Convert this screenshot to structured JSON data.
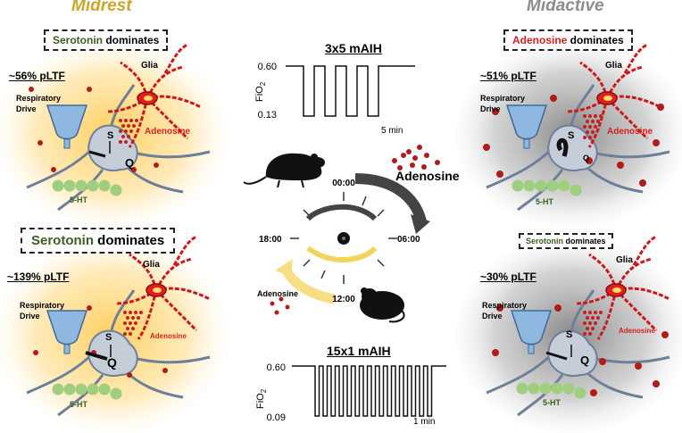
{
  "titles": {
    "left": "Midrest",
    "right": "Midactive"
  },
  "colors": {
    "midrest": "#c9a52a",
    "midactive": "#8c8c8c",
    "serotonin": "#3a5f1e",
    "adenosine": "#d42020",
    "glia": "#cc1a1a",
    "drive": "#8fb8e0",
    "ht": "#9fce7f"
  },
  "panels": [
    {
      "dominates_word": "Serotonin",
      "dominates_rest": " dominates",
      "pltf": "~56% pLTF",
      "glia": "Glia",
      "drive": "Respiratory Drive",
      "adenosine": "Adenosine",
      "ht": "5-HT",
      "s": "S",
      "q": "Q"
    },
    {
      "dominates_word": "Serotonin",
      "dominates_rest": " dominates",
      "pltf": "~139% pLTF",
      "glia": "Glia",
      "drive": "Respiratory Drive",
      "adenosine": "Adenosine",
      "ht": "5-HT",
      "s": "S",
      "q": "Q"
    },
    {
      "dominates_word": "Adenosine",
      "dominates_rest": " dominates",
      "pltf": "~51% pLTF",
      "glia": "Glia",
      "drive": "Respiratory Drive",
      "adenosine": "Adenosine",
      "ht": "5-HT",
      "s": "S",
      "q": "Q"
    },
    {
      "dominates_word": "Serotonin",
      "dominates_rest": " dominates",
      "pltf": "~30% pLTF",
      "glia": "Glia",
      "drive": "Respiratory Drive",
      "adenosine": "Adenosine",
      "ht": "5-HT",
      "s": "S",
      "q": "Q"
    }
  ],
  "protocol_top": {
    "title": "3x5 mAIH",
    "y_high": "0.60",
    "y_low": "0.13",
    "ylabel": "FiO",
    "ylabel_sub": "2",
    "duration": "5 min"
  },
  "protocol_bottom": {
    "title": "15x1 mAIH",
    "y_high": "0.60",
    "y_low": "0.09",
    "ylabel": "FiO",
    "ylabel_sub": "2",
    "duration": "1 min"
  },
  "clock": {
    "t0": "00:00",
    "t6": "06:00",
    "t12": "12:00",
    "t18": "18:00",
    "adenosine_big": "Adenosine",
    "adenosine_small": "Adenosine"
  }
}
